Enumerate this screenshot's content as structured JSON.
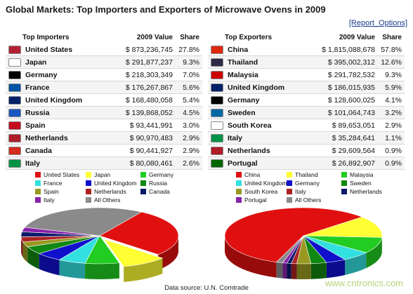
{
  "title": "Global Markets: Top Importers and Exporters of Microwave Ovens in 2009",
  "report_options": "[Report_Options]",
  "source": "Data source: U.N. Comtrade",
  "watermark": "www.cntronics.com",
  "importers": {
    "headers": [
      "Top Importers",
      "2009 Value",
      "Share"
    ],
    "rows": [
      {
        "country": "United States",
        "value": "$ 873,236,745",
        "share": "27.8%",
        "color": "#e01010"
      },
      {
        "country": "Japan",
        "value": "$ 291,877,237",
        "share": "9.3%",
        "color": "#ffff33"
      },
      {
        "country": "Germany",
        "value": "$ 218,303,349",
        "share": "7.0%",
        "color": "#22cc22"
      },
      {
        "country": "France",
        "value": "$ 176,267,867",
        "share": "5.6%",
        "color": "#33e0e0"
      },
      {
        "country": "United Kingdom",
        "value": "$ 168,480,058",
        "share": "5.4%",
        "color": "#1010cc"
      },
      {
        "country": "Russia",
        "value": "$ 139,868,052",
        "share": "4.5%",
        "color": "#118811"
      },
      {
        "country": "Spain",
        "value": "$ 93,441,991",
        "share": "3.0%",
        "color": "#999922"
      },
      {
        "country": "Netherlands",
        "value": "$ 90,970,483",
        "share": "2.9%",
        "color": "#aa2222"
      },
      {
        "country": "Canada",
        "value": "$ 90,441,927",
        "share": "2.9%",
        "color": "#0a1a6a"
      },
      {
        "country": "Italy",
        "value": "$ 80,080,461",
        "share": "2.6%",
        "color": "#8822aa"
      }
    ]
  },
  "exporters": {
    "headers": [
      "Top Exporters",
      "2009 Value",
      "Share"
    ],
    "rows": [
      {
        "country": "China",
        "value": "$ 1,815,088,678",
        "share": "57.8%",
        "color": "#e01010"
      },
      {
        "country": "Thailand",
        "value": "$ 395,002,312",
        "share": "12.6%",
        "color": "#ffff33"
      },
      {
        "country": "Malaysia",
        "value": "$ 291,782,532",
        "share": "9.3%",
        "color": "#22cc22"
      },
      {
        "country": "United Kingdom",
        "value": "$ 186,015,935",
        "share": "5.9%",
        "color": "#33e0e0"
      },
      {
        "country": "Germany",
        "value": "$ 128,600,025",
        "share": "4.1%",
        "color": "#1010cc"
      },
      {
        "country": "Sweden",
        "value": "$ 101,064,743",
        "share": "3.2%",
        "color": "#118811"
      },
      {
        "country": "South Korea",
        "value": "$ 89,653,051",
        "share": "2.9%",
        "color": "#999922"
      },
      {
        "country": "Italy",
        "value": "$ 35,284,641",
        "share": "1.1%",
        "color": "#aa2222"
      },
      {
        "country": "Netherlands",
        "value": "$ 29,609,564",
        "share": "0.9%",
        "color": "#0a1a6a"
      },
      {
        "country": "Portugal",
        "value": "$ 26,892,907",
        "share": "0.9%",
        "color": "#8822aa"
      }
    ]
  },
  "flags": {
    "United States": "#b22234",
    "Japan": "#ffffff",
    "Germany": "#000000",
    "France": "#0055a4",
    "United Kingdom": "#012169",
    "Russia": "#1c57c0",
    "Spain": "#c60b1e",
    "Netherlands": "#ae1c28",
    "Canada": "#d52b1e",
    "Italy": "#009246",
    "China": "#de2910",
    "Thailand": "#2d2a4a",
    "Malaysia": "#cc0001",
    "Sweden": "#006aa7",
    "South Korea": "#ffffff",
    "Portugal": "#006600"
  },
  "chart_data": [
    {
      "type": "pie",
      "categories": [
        "United States",
        "Japan",
        "Germany",
        "France",
        "United Kingdom",
        "Russia",
        "Spain",
        "Netherlands",
        "Canada",
        "Italy",
        "All Others"
      ],
      "values": [
        27.8,
        9.3,
        7.0,
        5.6,
        5.4,
        4.5,
        3.0,
        2.9,
        2.9,
        2.6,
        29.0
      ],
      "colors": [
        "#e01010",
        "#ffff33",
        "#22cc22",
        "#33e0e0",
        "#1010cc",
        "#118811",
        "#999922",
        "#aa2222",
        "#0a1a6a",
        "#8822aa",
        "#8a8a8a"
      ],
      "legend": [
        "United States",
        "Japan",
        "Germany",
        "France",
        "United Kingdom",
        "Russia",
        "Spain",
        "Netherlands",
        "Canada",
        "Italy",
        "All Others"
      ]
    },
    {
      "type": "pie",
      "categories": [
        "China",
        "Thailand",
        "Malaysia",
        "United Kingdom",
        "Germany",
        "Sweden",
        "South Korea",
        "Italy",
        "Netherlands",
        "Portugal",
        "All Others"
      ],
      "values": [
        57.8,
        12.6,
        9.3,
        5.9,
        4.1,
        3.2,
        2.9,
        1.1,
        0.9,
        0.9,
        1.3
      ],
      "colors": [
        "#e01010",
        "#ffff33",
        "#22cc22",
        "#33e0e0",
        "#1010cc",
        "#118811",
        "#999922",
        "#aa2222",
        "#0a1a6a",
        "#8822aa",
        "#8a8a8a"
      ],
      "legend": [
        "China",
        "Thailand",
        "Malaysia",
        "United Kingdom",
        "Germany",
        "Sweden",
        "South Korea",
        "Italy",
        "Netherlands",
        "Portugal",
        "All Others"
      ]
    }
  ]
}
